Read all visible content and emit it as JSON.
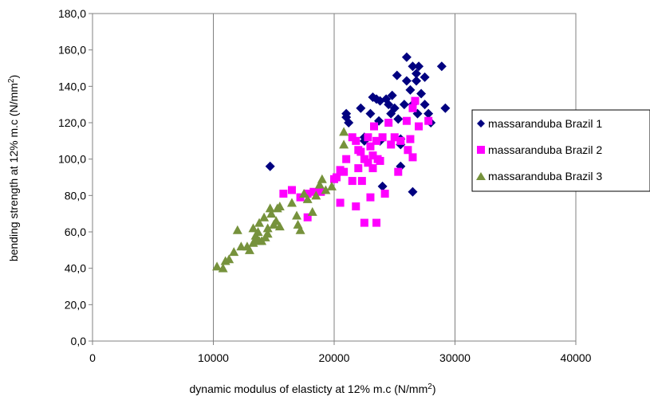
{
  "chart_data": {
    "type": "scatter",
    "xlabel": "dynamic modulus of elasticty at 12% m.c (N/mm",
    "xlabel_sup": "2",
    "xlabel_end": ")",
    "ylabel": "bending strength at 12% m.c (N/mm",
    "ylabel_sup": "2",
    "ylabel_end": ")",
    "xlim": [
      0,
      40000
    ],
    "ylim": [
      0,
      180
    ],
    "x_ticks": [
      0,
      10000,
      20000,
      30000,
      40000
    ],
    "x_tick_labels": [
      "0",
      "10000",
      "20000",
      "30000",
      "40000"
    ],
    "y_ticks": [
      0,
      20,
      40,
      60,
      80,
      100,
      120,
      140,
      160,
      180
    ],
    "y_tick_labels": [
      "0,0",
      "20,0",
      "40,0",
      "60,0",
      "80,0",
      "100,0",
      "120,0",
      "140,0",
      "160,0",
      "180,0"
    ],
    "grid": "vertical",
    "legend_position": "right",
    "series": [
      {
        "name": "massaranduba Brazil 1",
        "marker": "diamond",
        "color": "#000080",
        "points": [
          [
            14700,
            96
          ],
          [
            21000,
            125
          ],
          [
            21000,
            123
          ],
          [
            21200,
            120
          ],
          [
            22200,
            128
          ],
          [
            22500,
            112
          ],
          [
            22500,
            110
          ],
          [
            23000,
            125
          ],
          [
            23200,
            134
          ],
          [
            23500,
            133
          ],
          [
            23700,
            121
          ],
          [
            23800,
            132
          ],
          [
            23800,
            110
          ],
          [
            24000,
            85
          ],
          [
            24300,
            133
          ],
          [
            24500,
            130
          ],
          [
            24700,
            125
          ],
          [
            24800,
            135
          ],
          [
            25000,
            128
          ],
          [
            25200,
            146
          ],
          [
            25300,
            122
          ],
          [
            25500,
            111
          ],
          [
            25500,
            108
          ],
          [
            25500,
            96
          ],
          [
            25800,
            130
          ],
          [
            26000,
            143
          ],
          [
            26000,
            156
          ],
          [
            26300,
            138
          ],
          [
            26500,
            151
          ],
          [
            26500,
            130
          ],
          [
            26500,
            82
          ],
          [
            26800,
            147
          ],
          [
            26800,
            143
          ],
          [
            26900,
            125
          ],
          [
            27000,
            151
          ],
          [
            27200,
            136
          ],
          [
            27500,
            130
          ],
          [
            27500,
            145
          ],
          [
            27800,
            125
          ],
          [
            28000,
            120
          ],
          [
            28900,
            151
          ],
          [
            29200,
            128
          ]
        ]
      },
      {
        "name": "massaranduba Brazil 2",
        "marker": "square",
        "color": "#ff00ff",
        "points": [
          [
            15800,
            81
          ],
          [
            16500,
            83
          ],
          [
            17200,
            79
          ],
          [
            17800,
            68
          ],
          [
            17800,
            81
          ],
          [
            18300,
            82
          ],
          [
            18900,
            82
          ],
          [
            20000,
            89
          ],
          [
            20200,
            90
          ],
          [
            20500,
            94
          ],
          [
            20500,
            76
          ],
          [
            20800,
            93
          ],
          [
            21000,
            100
          ],
          [
            21500,
            112
          ],
          [
            21500,
            88
          ],
          [
            21800,
            74
          ],
          [
            21800,
            110
          ],
          [
            22000,
            95
          ],
          [
            22000,
            105
          ],
          [
            22200,
            104
          ],
          [
            22300,
            88
          ],
          [
            22500,
            65
          ],
          [
            22500,
            100
          ],
          [
            22800,
            112
          ],
          [
            22800,
            98
          ],
          [
            23000,
            107
          ],
          [
            23000,
            79
          ],
          [
            23200,
            102
          ],
          [
            23200,
            95
          ],
          [
            23300,
            118
          ],
          [
            23500,
            65
          ],
          [
            23500,
            110
          ],
          [
            23600,
            100
          ],
          [
            23800,
            99
          ],
          [
            24000,
            112
          ],
          [
            24200,
            81
          ],
          [
            24500,
            120
          ],
          [
            24700,
            108
          ],
          [
            25000,
            112
          ],
          [
            25300,
            93
          ],
          [
            25500,
            110
          ],
          [
            26000,
            121
          ],
          [
            26100,
            105
          ],
          [
            26300,
            111
          ],
          [
            26500,
            101
          ],
          [
            26500,
            128
          ],
          [
            26700,
            132
          ],
          [
            27000,
            118
          ],
          [
            27800,
            121
          ]
        ]
      },
      {
        "name": "massaranduba Brazil 3",
        "marker": "triangle",
        "color": "#76923c",
        "points": [
          [
            10300,
            41
          ],
          [
            10800,
            40
          ],
          [
            11000,
            44
          ],
          [
            11300,
            45
          ],
          [
            11700,
            49
          ],
          [
            12000,
            61
          ],
          [
            12300,
            52
          ],
          [
            12800,
            52
          ],
          [
            13000,
            50
          ],
          [
            13300,
            54
          ],
          [
            13300,
            62
          ],
          [
            13500,
            58
          ],
          [
            13500,
            56
          ],
          [
            13700,
            60
          ],
          [
            13800,
            65
          ],
          [
            13800,
            55
          ],
          [
            14000,
            55
          ],
          [
            14200,
            68
          ],
          [
            14300,
            57
          ],
          [
            14500,
            62
          ],
          [
            14500,
            59
          ],
          [
            14700,
            73
          ],
          [
            14800,
            70
          ],
          [
            15000,
            64
          ],
          [
            15200,
            66
          ],
          [
            15300,
            73
          ],
          [
            15500,
            63
          ],
          [
            15500,
            74
          ],
          [
            16500,
            76
          ],
          [
            16900,
            69
          ],
          [
            17000,
            64
          ],
          [
            17200,
            61
          ],
          [
            17500,
            81
          ],
          [
            17800,
            78
          ],
          [
            18200,
            71
          ],
          [
            18500,
            80
          ],
          [
            18800,
            86
          ],
          [
            19000,
            89
          ],
          [
            19300,
            83
          ],
          [
            19800,
            85
          ],
          [
            20800,
            115
          ],
          [
            20800,
            108
          ]
        ]
      }
    ]
  }
}
